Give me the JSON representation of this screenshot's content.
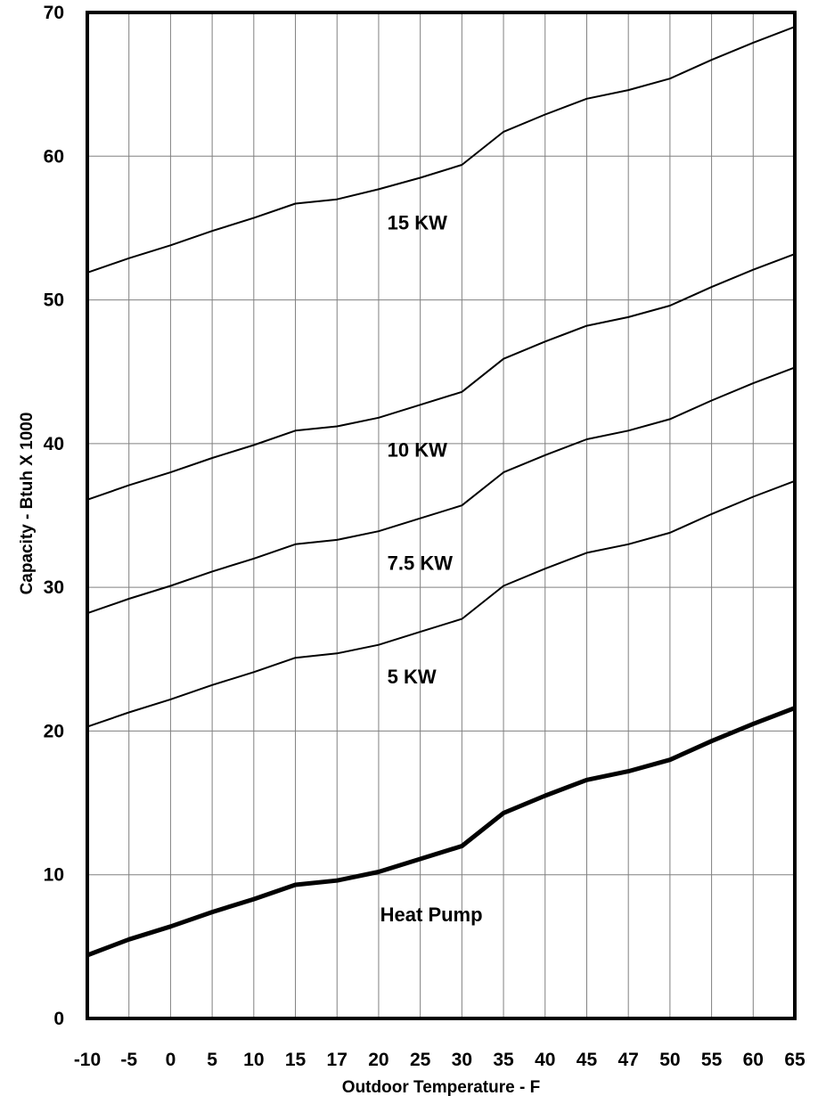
{
  "chart_data": {
    "type": "line",
    "title": "",
    "xlabel": "Outdoor Temperature - F",
    "ylabel": "Capacity - Btuh X 1000",
    "x": [
      "-10",
      "-5",
      "0",
      "5",
      "10",
      "15",
      "17",
      "20",
      "25",
      "30",
      "35",
      "40",
      "45",
      "47",
      "50",
      "55",
      "60",
      "65"
    ],
    "yticks": [
      0,
      10,
      20,
      30,
      40,
      50,
      60,
      70
    ],
    "ylim": [
      0,
      70
    ],
    "grid": true,
    "series": [
      {
        "name": "15 KW",
        "values": [
          51.9,
          52.9,
          53.8,
          54.8,
          55.7,
          56.7,
          57.0,
          57.7,
          58.5,
          59.4,
          61.7,
          62.9,
          64.0,
          64.6,
          65.4,
          66.7,
          67.9,
          69.0
        ]
      },
      {
        "name": "10 KW",
        "values": [
          36.1,
          37.1,
          38.0,
          39.0,
          39.9,
          40.9,
          41.2,
          41.8,
          42.7,
          43.6,
          45.9,
          47.1,
          48.2,
          48.8,
          49.6,
          50.9,
          52.1,
          53.2
        ]
      },
      {
        "name": "7.5 KW",
        "values": [
          28.2,
          29.2,
          30.1,
          31.1,
          32.0,
          33.0,
          33.3,
          33.9,
          34.8,
          35.7,
          38.0,
          39.2,
          40.3,
          40.9,
          41.7,
          43.0,
          44.2,
          45.3
        ]
      },
      {
        "name": "5 KW",
        "values": [
          20.3,
          21.3,
          22.2,
          23.2,
          24.1,
          25.1,
          25.4,
          26.0,
          26.9,
          27.8,
          30.1,
          31.3,
          32.4,
          33.0,
          33.8,
          35.1,
          36.3,
          37.4
        ]
      },
      {
        "name": "Heat Pump",
        "values": [
          4.4,
          5.5,
          6.4,
          7.4,
          8.3,
          9.3,
          9.6,
          10.2,
          11.1,
          12.0,
          14.3,
          15.5,
          16.6,
          17.2,
          18.0,
          19.3,
          20.5,
          21.6
        ]
      }
    ],
    "labels": [
      {
        "text": "15 KW",
        "series": 0
      },
      {
        "text": "10 KW",
        "series": 1
      },
      {
        "text": "7.5 KW",
        "series": 2
      },
      {
        "text": "5 KW",
        "series": 3
      },
      {
        "text": "Heat Pump",
        "series": 4
      }
    ]
  }
}
